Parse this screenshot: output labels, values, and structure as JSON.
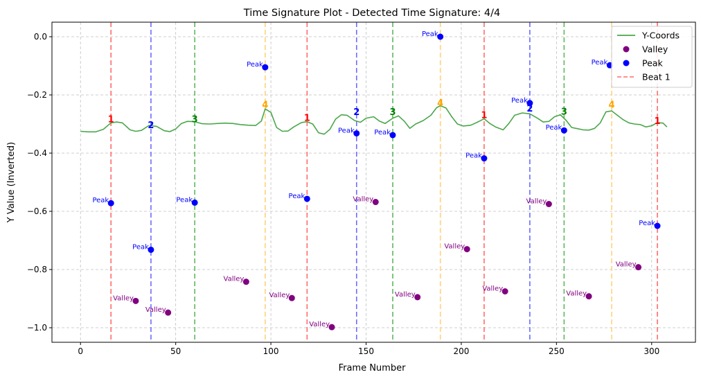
{
  "chart_data": {
    "type": "line",
    "title": "Time Signature Plot - Detected Time Signature: 4/4",
    "xlabel": "Frame Number",
    "ylabel": "Y Value (Inverted)",
    "xlim": [
      -15,
      323
    ],
    "ylim": [
      -1.05,
      0.05
    ],
    "xticks": [
      0,
      50,
      100,
      150,
      200,
      250,
      300
    ],
    "yticks": [
      0.0,
      -0.2,
      -0.4,
      -0.6,
      -0.8,
      -1.0
    ],
    "ytick_labels": [
      "0.0",
      "−0.2",
      "−0.4",
      "−0.6",
      "−0.8",
      "−1.0"
    ],
    "grid": true,
    "legend_position": "top-right",
    "legend": [
      {
        "label": "Y-Coords",
        "kind": "line",
        "color": "#4aa64a"
      },
      {
        "label": "Valley",
        "kind": "marker",
        "color": "#800080"
      },
      {
        "label": "Peak",
        "kind": "marker",
        "color": "#0000ff"
      },
      {
        "label": "Beat 1",
        "kind": "dashed",
        "color": "#ff6b6b"
      }
    ],
    "y_coords": {
      "name": "Y-Coords",
      "color": "#4aa64a",
      "x": [
        0,
        4,
        8,
        12,
        16,
        19,
        22,
        26,
        29,
        32,
        36,
        40,
        44,
        47,
        50,
        53,
        56,
        60,
        64,
        68,
        72,
        76,
        80,
        84,
        88,
        92,
        95,
        97,
        100,
        103,
        106,
        109,
        112,
        116,
        119,
        122,
        125,
        128,
        131,
        134,
        137,
        140,
        144,
        147,
        150,
        154,
        157,
        160,
        164,
        167,
        170,
        173,
        176,
        180,
        184,
        187,
        189,
        192,
        195,
        198,
        201,
        205,
        209,
        212,
        215,
        218,
        222,
        225,
        228,
        232,
        236,
        240,
        243,
        246,
        249,
        252,
        255,
        258,
        261,
        264,
        267,
        270,
        273,
        276,
        279,
        282,
        285,
        288,
        291,
        294,
        297,
        300,
        303,
        306,
        308
      ],
      "y": [
        -0.325,
        -0.327,
        -0.327,
        -0.318,
        -0.296,
        -0.293,
        -0.296,
        -0.32,
        -0.325,
        -0.322,
        -0.305,
        -0.308,
        -0.323,
        -0.326,
        -0.317,
        -0.298,
        -0.291,
        -0.292,
        -0.299,
        -0.3,
        -0.298,
        -0.297,
        -0.298,
        -0.302,
        -0.304,
        -0.305,
        -0.29,
        -0.248,
        -0.26,
        -0.312,
        -0.325,
        -0.324,
        -0.31,
        -0.295,
        -0.292,
        -0.3,
        -0.33,
        -0.335,
        -0.318,
        -0.283,
        -0.268,
        -0.27,
        -0.288,
        -0.294,
        -0.28,
        -0.275,
        -0.29,
        -0.298,
        -0.28,
        -0.272,
        -0.29,
        -0.315,
        -0.3,
        -0.288,
        -0.27,
        -0.244,
        -0.237,
        -0.245,
        -0.275,
        -0.3,
        -0.307,
        -0.304,
        -0.292,
        -0.282,
        -0.298,
        -0.31,
        -0.32,
        -0.298,
        -0.27,
        -0.262,
        -0.265,
        -0.28,
        -0.293,
        -0.291,
        -0.275,
        -0.268,
        -0.287,
        -0.312,
        -0.316,
        -0.32,
        -0.321,
        -0.315,
        -0.296,
        -0.258,
        -0.255,
        -0.27,
        -0.285,
        -0.296,
        -0.3,
        -0.302,
        -0.31,
        -0.306,
        -0.295,
        -0.297,
        -0.31
      ]
    },
    "beats": [
      {
        "x": 16,
        "beat": "1",
        "color": "#ff6b6b",
        "label_color": "#ff0000",
        "label_y": -0.285
      },
      {
        "x": 37,
        "beat": "2",
        "color": "#6b6bff",
        "label_color": "#0000ff",
        "label_y": -0.305
      },
      {
        "x": 60,
        "beat": "3",
        "color": "#5cb85c",
        "label_color": "#008000",
        "label_y": -0.285
      },
      {
        "x": 97,
        "beat": "4",
        "color": "#ffd27a",
        "label_color": "#ffa500",
        "label_y": -0.235
      },
      {
        "x": 119,
        "beat": "1",
        "color": "#ff6b6b",
        "label_color": "#ff0000",
        "label_y": -0.28
      },
      {
        "x": 145,
        "beat": "2",
        "color": "#6b6bff",
        "label_color": "#0000ff",
        "label_y": -0.26
      },
      {
        "x": 164,
        "beat": "3",
        "color": "#5cb85c",
        "label_color": "#008000",
        "label_y": -0.26
      },
      {
        "x": 189,
        "beat": "4",
        "color": "#ffd27a",
        "label_color": "#ffa500",
        "label_y": -0.228
      },
      {
        "x": 212,
        "beat": "1",
        "color": "#ff6b6b",
        "label_color": "#ff0000",
        "label_y": -0.27
      },
      {
        "x": 236,
        "beat": "2",
        "color": "#6b6bff",
        "label_color": "#0000ff",
        "label_y": -0.248
      },
      {
        "x": 254,
        "beat": "3",
        "color": "#5cb85c",
        "label_color": "#008000",
        "label_y": -0.258
      },
      {
        "x": 279,
        "beat": "4",
        "color": "#ffd27a",
        "label_color": "#ffa500",
        "label_y": -0.235
      },
      {
        "x": 303,
        "beat": "1",
        "color": "#ff6b6b",
        "label_color": "#ff0000",
        "label_y": -0.29
      }
    ],
    "peaks": {
      "label": "Peak",
      "color": "#0000ff",
      "points": [
        [
          16,
          -0.572
        ],
        [
          37,
          -0.732
        ],
        [
          60,
          -0.57
        ],
        [
          97,
          -0.105
        ],
        [
          119,
          -0.557
        ],
        [
          145,
          -0.332
        ],
        [
          164,
          -0.338
        ],
        [
          189,
          0.0
        ],
        [
          212,
          -0.418
        ],
        [
          236,
          -0.228
        ],
        [
          254,
          -0.322
        ],
        [
          278,
          -0.098
        ],
        [
          303,
          -0.65
        ]
      ]
    },
    "valleys": {
      "label": "Valley",
      "color": "#800080",
      "points": [
        [
          29,
          -0.908
        ],
        [
          46,
          -0.948
        ],
        [
          87,
          -0.842
        ],
        [
          111,
          -0.898
        ],
        [
          132,
          -0.998
        ],
        [
          155,
          -0.568
        ],
        [
          177,
          -0.895
        ],
        [
          203,
          -0.73
        ],
        [
          223,
          -0.875
        ],
        [
          246,
          -0.575
        ],
        [
          267,
          -0.892
        ],
        [
          293,
          -0.792
        ]
      ]
    }
  }
}
